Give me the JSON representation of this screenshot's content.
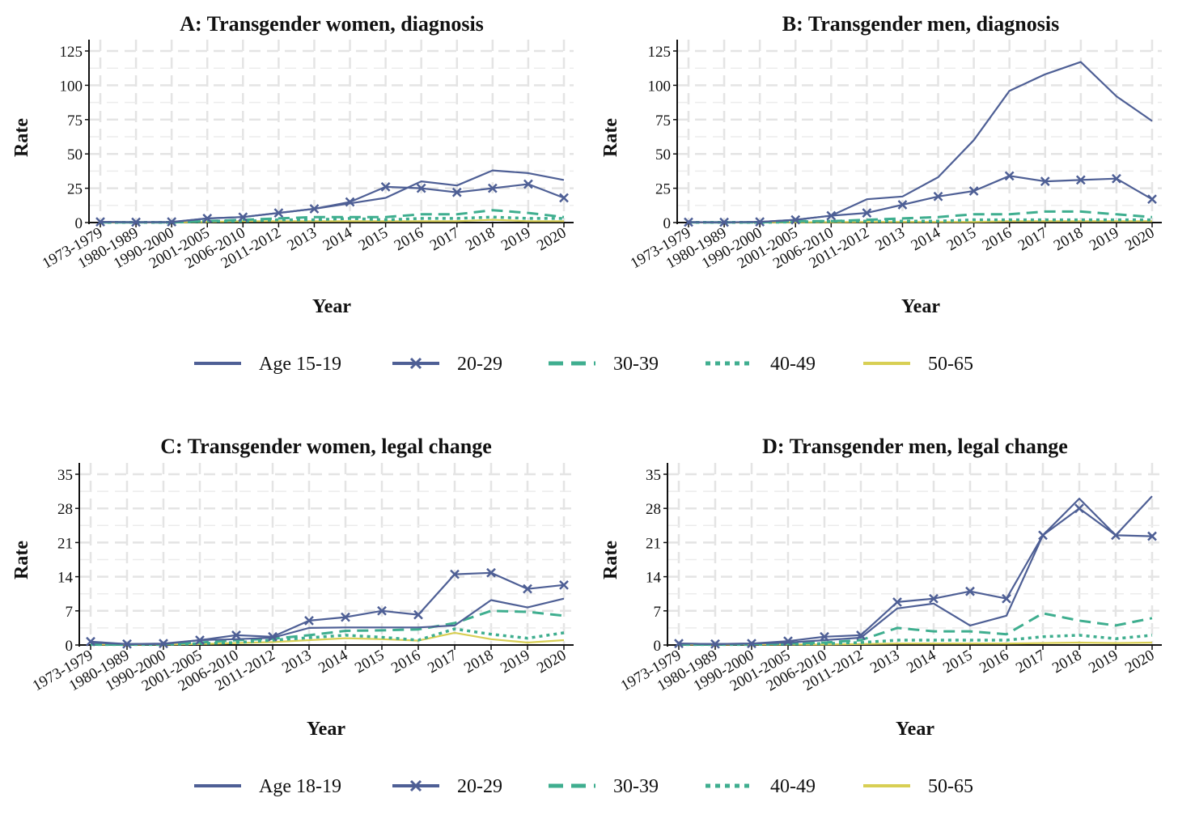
{
  "colors": {
    "age_youngest": "#4E5F95",
    "age_20_29": "#4E5F95",
    "age_30_39": "#3FAE8F",
    "age_40_49": "#3FAE8F",
    "age_50_65": "#D8CF54"
  },
  "legend_top": {
    "items": [
      {
        "label": "Age 15-19",
        "style": "solid"
      },
      {
        "label": "20-29",
        "style": "cross"
      },
      {
        "label": "30-39",
        "style": "dashed"
      },
      {
        "label": "40-49",
        "style": "dotted"
      },
      {
        "label": "50-65",
        "style": "yellow"
      }
    ]
  },
  "legend_bottom": {
    "items": [
      {
        "label": "Age 18-19",
        "style": "solid"
      },
      {
        "label": "20-29",
        "style": "cross"
      },
      {
        "label": "30-39",
        "style": "dashed"
      },
      {
        "label": "40-49",
        "style": "dotted"
      },
      {
        "label": "50-65",
        "style": "yellow"
      }
    ]
  },
  "chart_data": [
    {
      "type": "line",
      "title": "A: Transgender women, diagnosis",
      "xlabel": "Year",
      "ylabel": "Rate",
      "ylim": [
        0,
        125
      ],
      "yticks": [
        0,
        25,
        50,
        75,
        100,
        125
      ],
      "grid": true,
      "categories": [
        "1973-1979",
        "1980-1989",
        "1990-2000",
        "2001-2005",
        "2006-2010",
        "2011-2012",
        "2013",
        "2014",
        "2015",
        "2016",
        "2017",
        "2018",
        "2019",
        "2020"
      ],
      "series": [
        {
          "name": "Age 15-19",
          "values": [
            0.5,
            0.2,
            0.3,
            3,
            4,
            7,
            10,
            14,
            18,
            30,
            27,
            38,
            36,
            31
          ]
        },
        {
          "name": "20-29",
          "values": [
            0.5,
            0.3,
            0.5,
            3,
            4,
            7,
            10,
            15,
            26,
            25,
            22,
            25,
            28,
            18
          ]
        },
        {
          "name": "30-39",
          "values": [
            0.2,
            0.1,
            0.2,
            1,
            2,
            3,
            4,
            4,
            4,
            6,
            6,
            9,
            7,
            4
          ]
        },
        {
          "name": "40-49",
          "values": [
            0.1,
            0.1,
            0.1,
            1,
            1,
            2,
            2,
            3,
            2,
            3,
            3,
            4,
            3,
            3
          ]
        },
        {
          "name": "50-65",
          "values": [
            0.1,
            0.1,
            0.1,
            0.5,
            1,
            1,
            1,
            1,
            1,
            1,
            1,
            2,
            1,
            1
          ]
        }
      ]
    },
    {
      "type": "line",
      "title": "B: Transgender men, diagnosis",
      "xlabel": "Year",
      "ylabel": "Rate",
      "ylim": [
        0,
        125
      ],
      "yticks": [
        0,
        25,
        50,
        75,
        100,
        125
      ],
      "grid": true,
      "categories": [
        "1973-1979",
        "1980-1989",
        "1990-2000",
        "2001-2005",
        "2006-2010",
        "2011-2012",
        "2013",
        "2014",
        "2015",
        "2016",
        "2017",
        "2018",
        "2019",
        "2020"
      ],
      "series": [
        {
          "name": "Age 15-19",
          "values": [
            0.3,
            0.2,
            0.5,
            2,
            5,
            17,
            19,
            33,
            60,
            96,
            108,
            117,
            92,
            74
          ]
        },
        {
          "name": "20-29",
          "values": [
            0.3,
            0.2,
            0.5,
            2,
            5,
            7,
            13,
            19,
            23,
            34,
            30,
            31,
            32,
            17
          ]
        },
        {
          "name": "30-39",
          "values": [
            0.1,
            0.1,
            0.2,
            1,
            1,
            2,
            3,
            4,
            6,
            6,
            8,
            8,
            6,
            4
          ]
        },
        {
          "name": "40-49",
          "values": [
            0.1,
            0.1,
            0.1,
            0.5,
            1,
            1,
            1,
            1,
            2,
            2,
            2,
            2,
            2,
            2
          ]
        },
        {
          "name": "50-65",
          "values": [
            0.1,
            0.1,
            0.1,
            0.2,
            0.3,
            0.5,
            0.5,
            0.5,
            0.5,
            1,
            1,
            1,
            1,
            1
          ]
        }
      ]
    },
    {
      "type": "line",
      "title": "C: Transgender women, legal change",
      "xlabel": "Year",
      "ylabel": "Rate",
      "ylim": [
        0,
        35
      ],
      "yticks": [
        0,
        7,
        14,
        21,
        28,
        35
      ],
      "grid": true,
      "categories": [
        "1973-1979",
        "1980-1989",
        "1990-2000",
        "2001-2005",
        "2006-2010",
        "2011-2012",
        "2013",
        "2014",
        "2015",
        "2016",
        "2017",
        "2018",
        "2019",
        "2020"
      ],
      "series": [
        {
          "name": "Age 18-19",
          "values": [
            0.5,
            0.2,
            0.2,
            1,
            1.2,
            1.5,
            3.5,
            3.6,
            3.6,
            3.6,
            4,
            9.2,
            7.7,
            9.5
          ]
        },
        {
          "name": "20-29",
          "values": [
            0.7,
            0.2,
            0.3,
            1,
            2,
            1.7,
            5,
            5.7,
            7,
            6.2,
            14.5,
            14.8,
            11.5,
            12.3
          ]
        },
        {
          "name": "30-39",
          "values": [
            0.1,
            0.1,
            0.2,
            0.5,
            1,
            1.3,
            2,
            2.9,
            3,
            3.2,
            4.5,
            7,
            6.8,
            6
          ]
        },
        {
          "name": "40-49",
          "values": [
            0.1,
            0.1,
            0.1,
            0.3,
            0.5,
            1,
            1.5,
            2,
            1.6,
            1,
            3.3,
            2.2,
            1.4,
            2.5
          ]
        },
        {
          "name": "50-65",
          "values": [
            0.1,
            0.1,
            0.1,
            0.2,
            0.4,
            0.6,
            1,
            1.4,
            1.2,
            0.9,
            2.5,
            1.2,
            0.5,
            1
          ]
        }
      ]
    },
    {
      "type": "line",
      "title": "D: Transgender men, legal change",
      "xlabel": "Year",
      "ylabel": "Rate",
      "ylim": [
        0,
        35
      ],
      "yticks": [
        0,
        7,
        14,
        21,
        28,
        35
      ],
      "grid": true,
      "categories": [
        "1973-1979",
        "1980-1989",
        "1990-2000",
        "2001-2005",
        "2006-2010",
        "2011-2012",
        "2013",
        "2014",
        "2015",
        "2016",
        "2017",
        "2018",
        "2019",
        "2020"
      ],
      "series": [
        {
          "name": "Age 18-19",
          "values": [
            0.3,
            0.2,
            0.3,
            0.5,
            1,
            1.5,
            7.5,
            8.5,
            4,
            6,
            22.5,
            30,
            22.5,
            30.5
          ]
        },
        {
          "name": "20-29",
          "values": [
            0.3,
            0.2,
            0.3,
            0.8,
            1.7,
            2,
            8.8,
            9.5,
            11,
            9.5,
            22.5,
            28,
            22.5,
            22.3
          ]
        },
        {
          "name": "30-39",
          "values": [
            0.1,
            0.1,
            0.2,
            0.3,
            0.5,
            1,
            3.5,
            2.8,
            2.8,
            2.2,
            6.5,
            5,
            4,
            5.5
          ]
        },
        {
          "name": "40-49",
          "values": [
            0.1,
            0.1,
            0.1,
            0.2,
            0.3,
            0.5,
            1,
            1,
            1,
            1,
            1.7,
            2,
            1.3,
            2
          ]
        },
        {
          "name": "50-65",
          "values": [
            0.1,
            0.1,
            0.1,
            0.1,
            0.1,
            0.2,
            0.3,
            0.3,
            0.3,
            0.3,
            0.4,
            0.5,
            0.4,
            0.5
          ]
        }
      ]
    }
  ]
}
